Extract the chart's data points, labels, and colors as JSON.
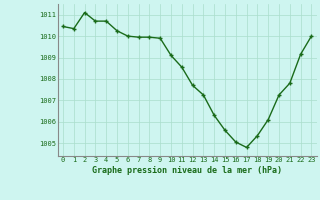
{
  "x": [
    0,
    1,
    2,
    3,
    4,
    5,
    6,
    7,
    8,
    9,
    10,
    11,
    12,
    13,
    14,
    15,
    16,
    17,
    18,
    19,
    20,
    21,
    22,
    23
  ],
  "y": [
    1010.45,
    1010.35,
    1011.1,
    1010.7,
    1010.7,
    1010.25,
    1010.0,
    1009.95,
    1009.95,
    1009.9,
    1009.1,
    1008.55,
    1007.7,
    1007.25,
    1006.3,
    1005.6,
    1005.05,
    1004.8,
    1005.35,
    1006.1,
    1007.25,
    1007.8,
    1009.15,
    1010.0
  ],
  "line_color": "#1a6b1a",
  "marker": "+",
  "marker_size": 3,
  "linewidth": 1.0,
  "bg_color": "#cef5f0",
  "grid_color": "#aaddcc",
  "xlabel": "Graphe pression niveau de la mer (hPa)",
  "xlabel_color": "#1a6b1a",
  "xlabel_fontsize": 6.0,
  "tick_color": "#1a6b1a",
  "tick_fontsize": 5.0,
  "ylim": [
    1004.4,
    1011.5
  ],
  "yticks": [
    1005,
    1006,
    1007,
    1008,
    1009,
    1010,
    1011
  ],
  "xticks": [
    0,
    1,
    2,
    3,
    4,
    5,
    6,
    7,
    8,
    9,
    10,
    11,
    12,
    13,
    14,
    15,
    16,
    17,
    18,
    19,
    20,
    21,
    22,
    23
  ],
  "spine_color": "#888888"
}
